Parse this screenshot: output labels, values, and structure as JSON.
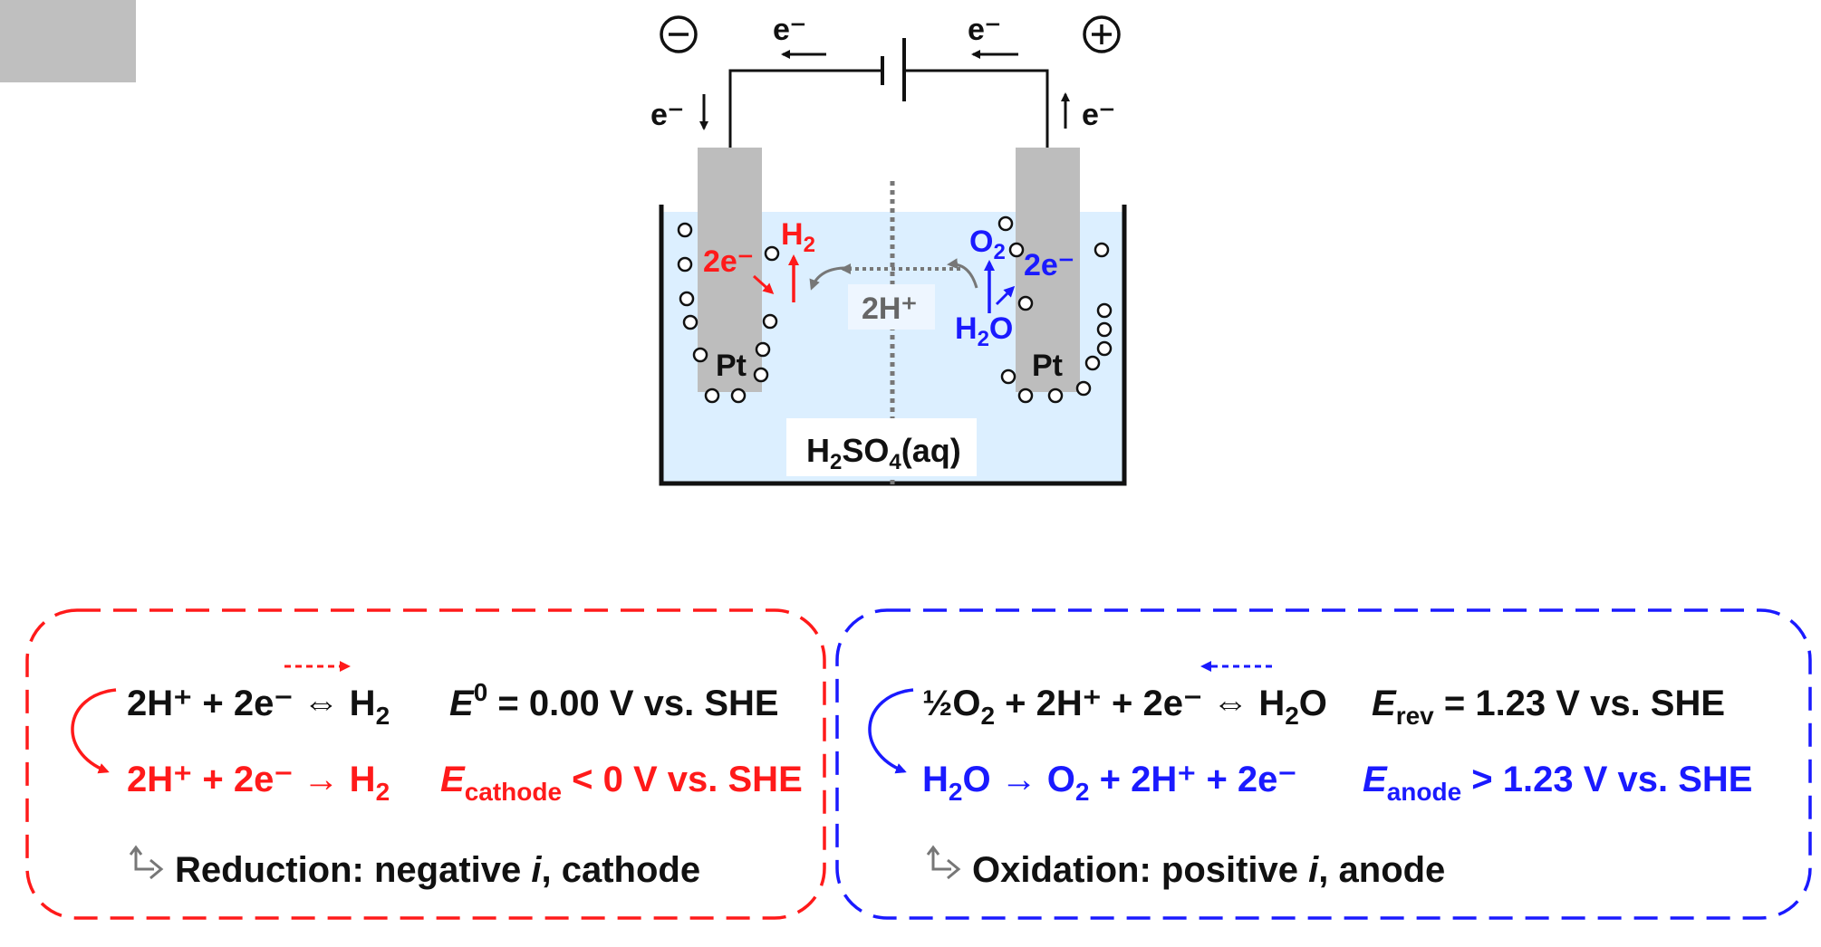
{
  "colors": {
    "cathode": "#ff1a1a",
    "anode": "#1a1aff",
    "electrolyte": "#dcefff",
    "electrode": "#bdbdbd",
    "ion": "#666666"
  },
  "cell": {
    "neg_terminal_icon": "circle-minus-icon",
    "pos_terminal_icon": "circle-plus-icon",
    "top_left_electron": "e⁻",
    "top_right_electron": "e⁻",
    "left_electron": "e⁻",
    "right_electron": "e⁻",
    "cathode": {
      "electrons": "2e⁻",
      "product_main": "H",
      "product_sub": "2",
      "metal": "Pt"
    },
    "anode": {
      "reactant_a": "H",
      "reactant_sub": "2",
      "reactant_b": "O",
      "product_main": "O",
      "product_sub": "2",
      "electrons": "2e⁻",
      "metal": "Pt"
    },
    "ion_label": "2H⁺",
    "electrolyte": {
      "a": "H",
      "a_sub": "2",
      "b": "SO",
      "b_sub": "4",
      "c": "(aq)"
    }
  },
  "reduction_box": {
    "eq1": {
      "lhs": "2H⁺ + 2e⁻ ⇔ H",
      "sub": "2"
    },
    "pot1": {
      "sym": "E",
      "sup": "0",
      "rest": " = 0.00 V vs. SHE"
    },
    "eq2": {
      "lhs": "2H⁺ + 2e⁻ → H",
      "sub": "2"
    },
    "pot2": {
      "sym": "E",
      "sub": "cathode",
      "rest": " < 0 V vs. SHE"
    },
    "note": {
      "pre": "Reduction: negative ",
      "ital": "i",
      "post": ", cathode"
    }
  },
  "oxidation_box": {
    "eq1": {
      "a": "½O",
      "a_sub": "2",
      "b": " + 2H⁺ + 2e⁻ ⇔ H",
      "b_sub": "2",
      "c": "O"
    },
    "pot1": {
      "sym": "E",
      "sub": "rev",
      "rest": " = 1.23 V vs. SHE"
    },
    "eq2": {
      "a": "H",
      "a_sub": "2",
      "b": "O → O",
      "b_sub": "2",
      "c": " + 2H⁺ + 2e⁻"
    },
    "pot2": {
      "sym": "E",
      "sub": "anode",
      "rest": " > 1.23 V vs. SHE"
    },
    "note": {
      "pre": "Oxidation: positive ",
      "ital": "i",
      "post": ", anode"
    }
  }
}
